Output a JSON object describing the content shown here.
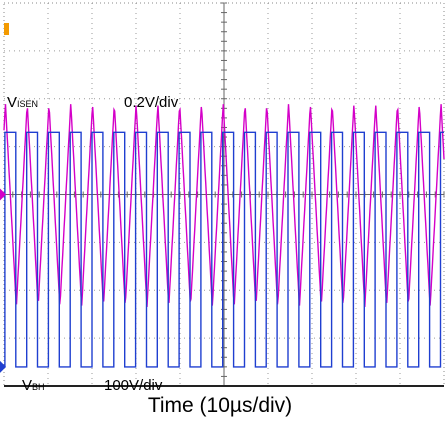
{
  "chart_data": {
    "type": "line",
    "title": "",
    "xlabel": "Time (10µs/div)",
    "grid": true,
    "x_divisions": 10,
    "y_divisions": 8,
    "series": [
      {
        "name_main": "V",
        "name_sub": "ISEN",
        "scale": "0.2V/div",
        "color": "#d400c8",
        "kind": "triangle",
        "period_div": 0.495,
        "high_div": 1.9,
        "low_div": -2.35,
        "phase_div": 0.28
      },
      {
        "name_main": "V",
        "name_sub": "BH",
        "scale": "100V/div",
        "color": "#1f3fd0",
        "kind": "square",
        "period_div": 0.495,
        "high_div": 1.3,
        "low_div": -3.6,
        "duty": 0.5,
        "phase_div": 0.02
      }
    ]
  }
}
